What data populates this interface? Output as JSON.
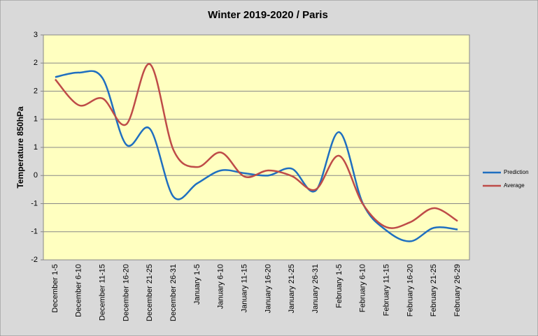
{
  "chart_data": {
    "type": "line",
    "title": "Winter 2019-2020 / Paris",
    "y_label": "Temperature 850hPa",
    "categories": [
      "December 1-5",
      "December 6-10",
      "December 11-15",
      "December 16-20",
      "December 21-25",
      "December 26-31",
      "January 1-5",
      "January 6-10",
      "January 11-15",
      "January 16-20",
      "January 21-25",
      "January 26-31",
      "February 1-5",
      "February 6-10",
      "February 11-15",
      "February 16-20",
      "February 21-25",
      "February 26-29"
    ],
    "series": [
      {
        "name": "Prediction",
        "color": "#1f6fc0",
        "values": [
          1.75,
          1.83,
          1.73,
          0.55,
          0.83,
          -0.38,
          -0.14,
          0.09,
          0.04,
          0,
          0.12,
          -0.27,
          0.77,
          -0.5,
          -0.98,
          -1.17,
          -0.93,
          -0.96
        ]
      },
      {
        "name": "Average",
        "color": "#be4b48",
        "values": [
          1.71,
          1.25,
          1.37,
          0.91,
          1.98,
          0.45,
          0.15,
          0.41,
          -0.02,
          0.09,
          -0.01,
          -0.25,
          0.35,
          -0.51,
          -0.92,
          -0.83,
          -0.58,
          -0.81
        ]
      }
    ],
    "ylim": [
      -1.5,
      2.5
    ],
    "yticks": [
      {
        "value": 2.5,
        "label": "3"
      },
      2,
      {
        "value": 1.5,
        "label": "2"
      },
      1,
      {
        "value": 0.5,
        "label": "1"
      },
      0,
      {
        "value": -0.5,
        "label": "-1"
      },
      -1,
      {
        "value": -1.5,
        "label": "-2"
      }
    ],
    "grid": true,
    "smooth": true,
    "legend": "right"
  }
}
